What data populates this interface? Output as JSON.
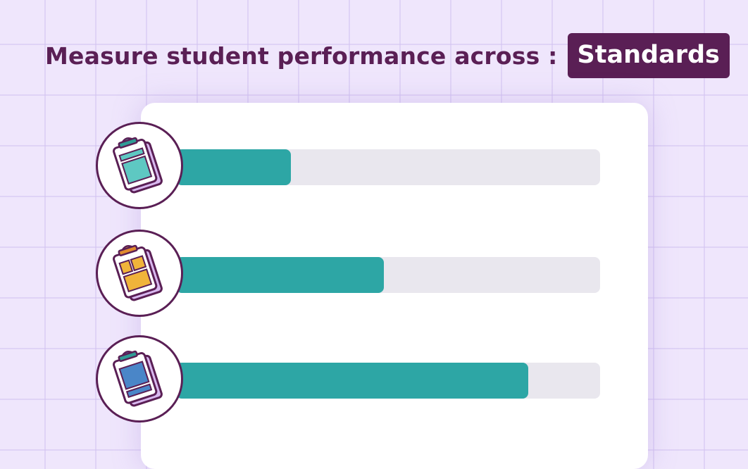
{
  "header": {
    "title": "Measure student performance across :",
    "badge": "Standards"
  },
  "rows": [
    {
      "icon": "clipboard-teal-icon",
      "progress_percent": 27,
      "accent": "#5ec8c2"
    },
    {
      "icon": "clipboard-orange-icon",
      "progress_percent": 49,
      "accent": "#f0b43a"
    },
    {
      "icon": "clipboard-blue-icon",
      "progress_percent": 83,
      "accent": "#4a86c8"
    }
  ],
  "colors": {
    "primary": "#5a1f55",
    "bar_fill": "#2da6a5",
    "bar_track": "#e9e7ee",
    "background": "#efe6fc"
  }
}
